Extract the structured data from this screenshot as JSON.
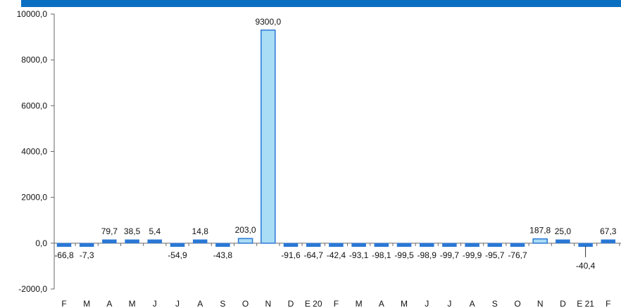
{
  "colors": {
    "header_bar": "#0b6fc1",
    "bar_small_fill": "#2a78d6",
    "bar_highlight_fill": "#a9dcf5",
    "bar_highlight_stroke": "#2a78d6",
    "axis": "#666666"
  },
  "chart_data": {
    "type": "bar",
    "title": "",
    "xlabel": "",
    "ylabel": "",
    "ylim": [
      -2000,
      10000
    ],
    "yticks": [
      "10000,0",
      "8000,0",
      "6000,0",
      "4000,0",
      "2000,0",
      "0,0",
      "-2000,0"
    ],
    "ytick_values": [
      10000,
      8000,
      6000,
      4000,
      2000,
      0,
      -2000
    ],
    "grid": false,
    "legend": "none",
    "categories": [
      "F",
      "M",
      "A",
      "M",
      "J",
      "J",
      "A",
      "S",
      "O",
      "N",
      "D",
      "E 20",
      "F",
      "M",
      "A",
      "M",
      "J",
      "J",
      "A",
      "S",
      "O",
      "N",
      "D",
      "E 21",
      "F"
    ],
    "values": [
      -66.8,
      -7.3,
      79.7,
      38.5,
      5.4,
      -54.9,
      14.8,
      -43.8,
      203.0,
      9300.0,
      -91.6,
      -64.7,
      -42.4,
      -93.1,
      -98.1,
      -99.5,
      -98.9,
      -99.7,
      -99.9,
      -95.7,
      -76.7,
      187.8,
      25.0,
      -40.4,
      67.3
    ],
    "value_labels": [
      "-66,8",
      "-7,3",
      "79,7",
      "38,5",
      "5,4",
      "-54,9",
      "14,8",
      "-43,8",
      "203,0",
      "9300,0",
      "-91,6",
      "-64,7",
      "-42,4",
      "-93,1",
      "-98,1",
      "-99,5",
      "-98,9",
      "-99,7",
      "-99,9",
      "-95,7",
      "-76,7",
      "187,8",
      "25,0",
      "-40,4",
      "67,3"
    ],
    "highlighted": [
      8,
      9,
      21
    ]
  }
}
